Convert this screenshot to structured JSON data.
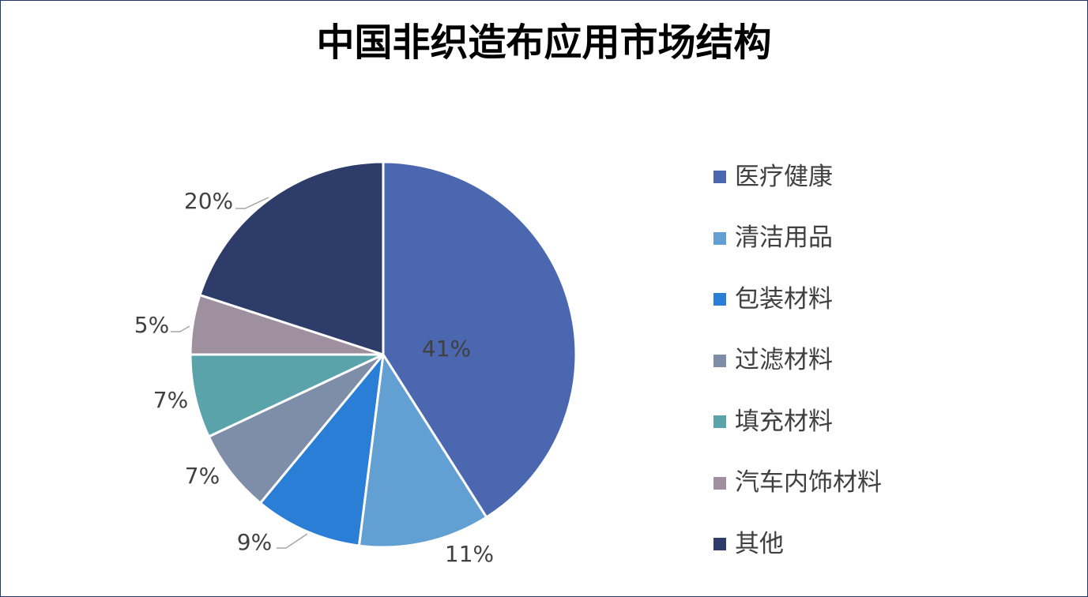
{
  "chart_data": {
    "type": "pie",
    "title": "中国非织造布应用市场结构",
    "categories": [
      "医疗健康",
      "清洁用品",
      "包装材料",
      "过滤材料",
      "填充材料",
      "汽车内饰材料",
      "其他"
    ],
    "values": [
      41,
      11,
      9,
      7,
      7,
      5,
      20
    ],
    "data_labels": [
      "41%",
      "11%",
      "9%",
      "7%",
      "7%",
      "5%",
      "20%"
    ],
    "colors": [
      "#4a67b0",
      "#629fd3",
      "#2a7ed6",
      "#7e8ea9",
      "#5ba3aa",
      "#9e909f",
      "#2d3c69"
    ],
    "legend_position": "right",
    "start_angle_deg": 0,
    "direction": "clockwise"
  }
}
